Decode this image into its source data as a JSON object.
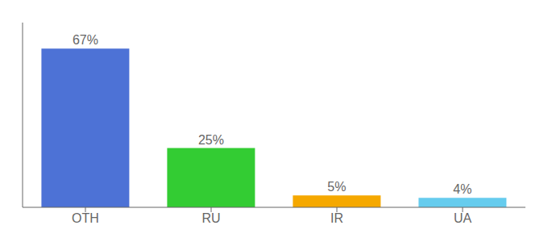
{
  "chart_data": {
    "type": "bar",
    "categories": [
      "OTH",
      "RU",
      "IR",
      "UA"
    ],
    "values": [
      67,
      25,
      5,
      4
    ],
    "value_labels": [
      "67%",
      "25%",
      "5%",
      "4%"
    ],
    "colors": [
      "#4d72d6",
      "#33cc33",
      "#f5a800",
      "#66ccee"
    ],
    "ylim": [
      0,
      78
    ],
    "yticks": [],
    "data_labels": true,
    "tick_labels": "x",
    "grid": false
  }
}
